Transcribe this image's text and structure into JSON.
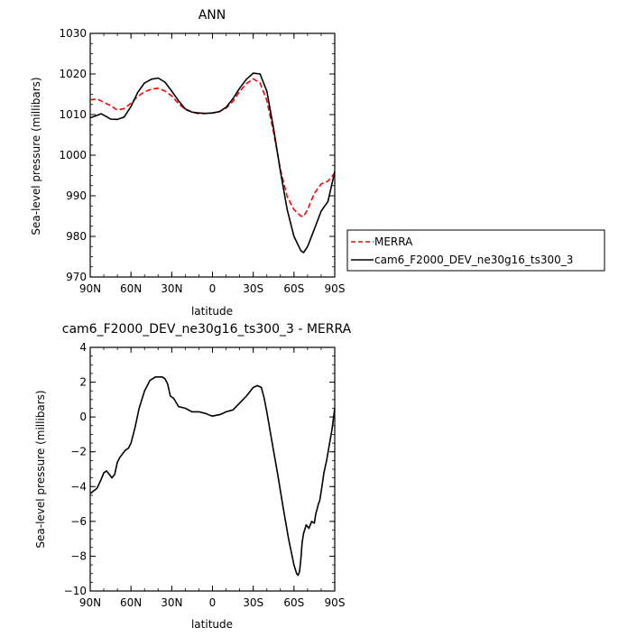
{
  "colors": {
    "merra": "#ff0000",
    "model": "#000000"
  },
  "chart_data": [
    {
      "type": "line",
      "title": "ANN",
      "xlabel": "latitude",
      "ylabel": "Sea-level pressure (millibars)",
      "xlim": [
        90,
        -90
      ],
      "ylim": [
        970,
        1030
      ],
      "xticks": [
        90,
        60,
        30,
        0,
        -30,
        -60,
        -90
      ],
      "xtick_labels": [
        "90N",
        "60N",
        "30N",
        "0",
        "30S",
        "60S",
        "90S"
      ],
      "yticks": [
        970,
        980,
        990,
        1000,
        1010,
        1020,
        1030
      ],
      "ytick_labels": [
        "970",
        "980",
        "990",
        "1000",
        "1010",
        "1020",
        "1030"
      ],
      "legend_position": "right",
      "series": [
        {
          "name": "MERRA",
          "style": "dashed",
          "color": "#ff0000",
          "x": [
            90,
            85,
            80,
            75,
            70,
            65,
            60,
            55,
            50,
            45,
            40,
            35,
            30,
            25,
            20,
            15,
            10,
            5,
            0,
            -5,
            -10,
            -15,
            -20,
            -25,
            -30,
            -35,
            -40,
            -45,
            -50,
            -55,
            -60,
            -65,
            -67,
            -70,
            -75,
            -80,
            -85,
            -90
          ],
          "y": [
            1013.6,
            1013.9,
            1013.0,
            1012.2,
            1011.1,
            1011.5,
            1012.8,
            1014.5,
            1015.6,
            1016.3,
            1016.5,
            1015.8,
            1014.6,
            1012.7,
            1011.2,
            1010.6,
            1010.2,
            1010.3,
            1010.4,
            1010.7,
            1011.6,
            1013.2,
            1015.7,
            1017.6,
            1018.8,
            1017.8,
            1013.5,
            1005.5,
            996.5,
            989.8,
            986.6,
            985.0,
            984.9,
            986.6,
            990.6,
            992.9,
            993.6,
            995.6
          ]
        },
        {
          "name": "cam6_F2000_DEV_ne30g16_ts300_3",
          "style": "solid",
          "color": "#000000",
          "x": [
            90,
            85,
            82,
            78,
            75,
            70,
            65,
            60,
            55,
            50,
            45,
            40,
            35,
            30,
            25,
            20,
            15,
            10,
            5,
            0,
            -5,
            -10,
            -15,
            -20,
            -25,
            -30,
            -35,
            -40,
            -45,
            -50,
            -55,
            -60,
            -65,
            -67,
            -70,
            -75,
            -80,
            -85,
            -90
          ],
          "y": [
            1009.2,
            1009.8,
            1010.2,
            1009.5,
            1008.9,
            1008.8,
            1009.4,
            1012.0,
            1015.5,
            1017.8,
            1018.7,
            1019.0,
            1018.0,
            1015.8,
            1013.4,
            1011.4,
            1010.6,
            1010.4,
            1010.3,
            1010.4,
            1010.7,
            1011.8,
            1013.9,
            1016.5,
            1018.7,
            1020.2,
            1020.0,
            1015.8,
            1006.5,
            996.0,
            986.6,
            980.0,
            976.5,
            976.0,
            977.5,
            981.8,
            986.2,
            988.6,
            996.0
          ]
        }
      ]
    },
    {
      "type": "line",
      "title": "cam6_F2000_DEV_ne30g16_ts300_3 - MERRA",
      "xlabel": "latitude",
      "ylabel": "Sea-level pressure (millibars)",
      "xlim": [
        90,
        -90
      ],
      "ylim": [
        -10,
        4
      ],
      "xticks": [
        90,
        60,
        30,
        0,
        -30,
        -60,
        -90
      ],
      "xtick_labels": [
        "90N",
        "60N",
        "30N",
        "0",
        "30S",
        "60S",
        "90S"
      ],
      "yticks": [
        -10,
        -8,
        -6,
        -4,
        -2,
        0,
        2,
        4
      ],
      "ytick_labels": [
        "−10",
        "−8",
        "−6",
        "−4",
        "−2",
        "0",
        "2",
        "4"
      ],
      "series": [
        {
          "name": "cam6_F2000_DEV_ne30g16_ts300_3 - MERRA",
          "style": "solid",
          "color": "#000000",
          "x": [
            90,
            85,
            82,
            80,
            78,
            76,
            74,
            72,
            70,
            68,
            66,
            64,
            62,
            60,
            57,
            54,
            50,
            46,
            44,
            42,
            40,
            37,
            35,
            33,
            31,
            29,
            28,
            25,
            20,
            15,
            10,
            5,
            2,
            0,
            -3,
            -6,
            -10,
            -15,
            -20,
            -25,
            -30,
            -33,
            -36,
            -38,
            -40,
            -44,
            -48,
            -52,
            -56,
            -60,
            -62,
            -63,
            -64,
            -65,
            -66,
            -67,
            -69,
            -71,
            -73,
            -75,
            -76,
            -78,
            -79,
            -80,
            -81,
            -82,
            -84,
            -86,
            -88,
            -89,
            -90
          ],
          "y": [
            -4.4,
            -4.1,
            -3.6,
            -3.2,
            -3.1,
            -3.3,
            -3.5,
            -3.3,
            -2.6,
            -2.3,
            -2.1,
            -1.9,
            -1.8,
            -1.5,
            -0.6,
            0.5,
            1.5,
            2.1,
            2.2,
            2.3,
            2.3,
            2.3,
            2.2,
            1.9,
            1.2,
            1.1,
            1.0,
            0.6,
            0.5,
            0.3,
            0.3,
            0.2,
            0.1,
            0.05,
            0.1,
            0.15,
            0.3,
            0.4,
            0.8,
            1.2,
            1.7,
            1.8,
            1.7,
            1.1,
            0.3,
            -1.5,
            -3.3,
            -5.2,
            -7.0,
            -8.5,
            -9.0,
            -9.1,
            -8.9,
            -8.2,
            -7.2,
            -6.7,
            -6.2,
            -6.4,
            -6.0,
            -6.1,
            -5.6,
            -5.0,
            -4.8,
            -4.3,
            -3.8,
            -3.2,
            -2.5,
            -1.6,
            -0.7,
            -0.1,
            0.5
          ]
        }
      ]
    }
  ]
}
